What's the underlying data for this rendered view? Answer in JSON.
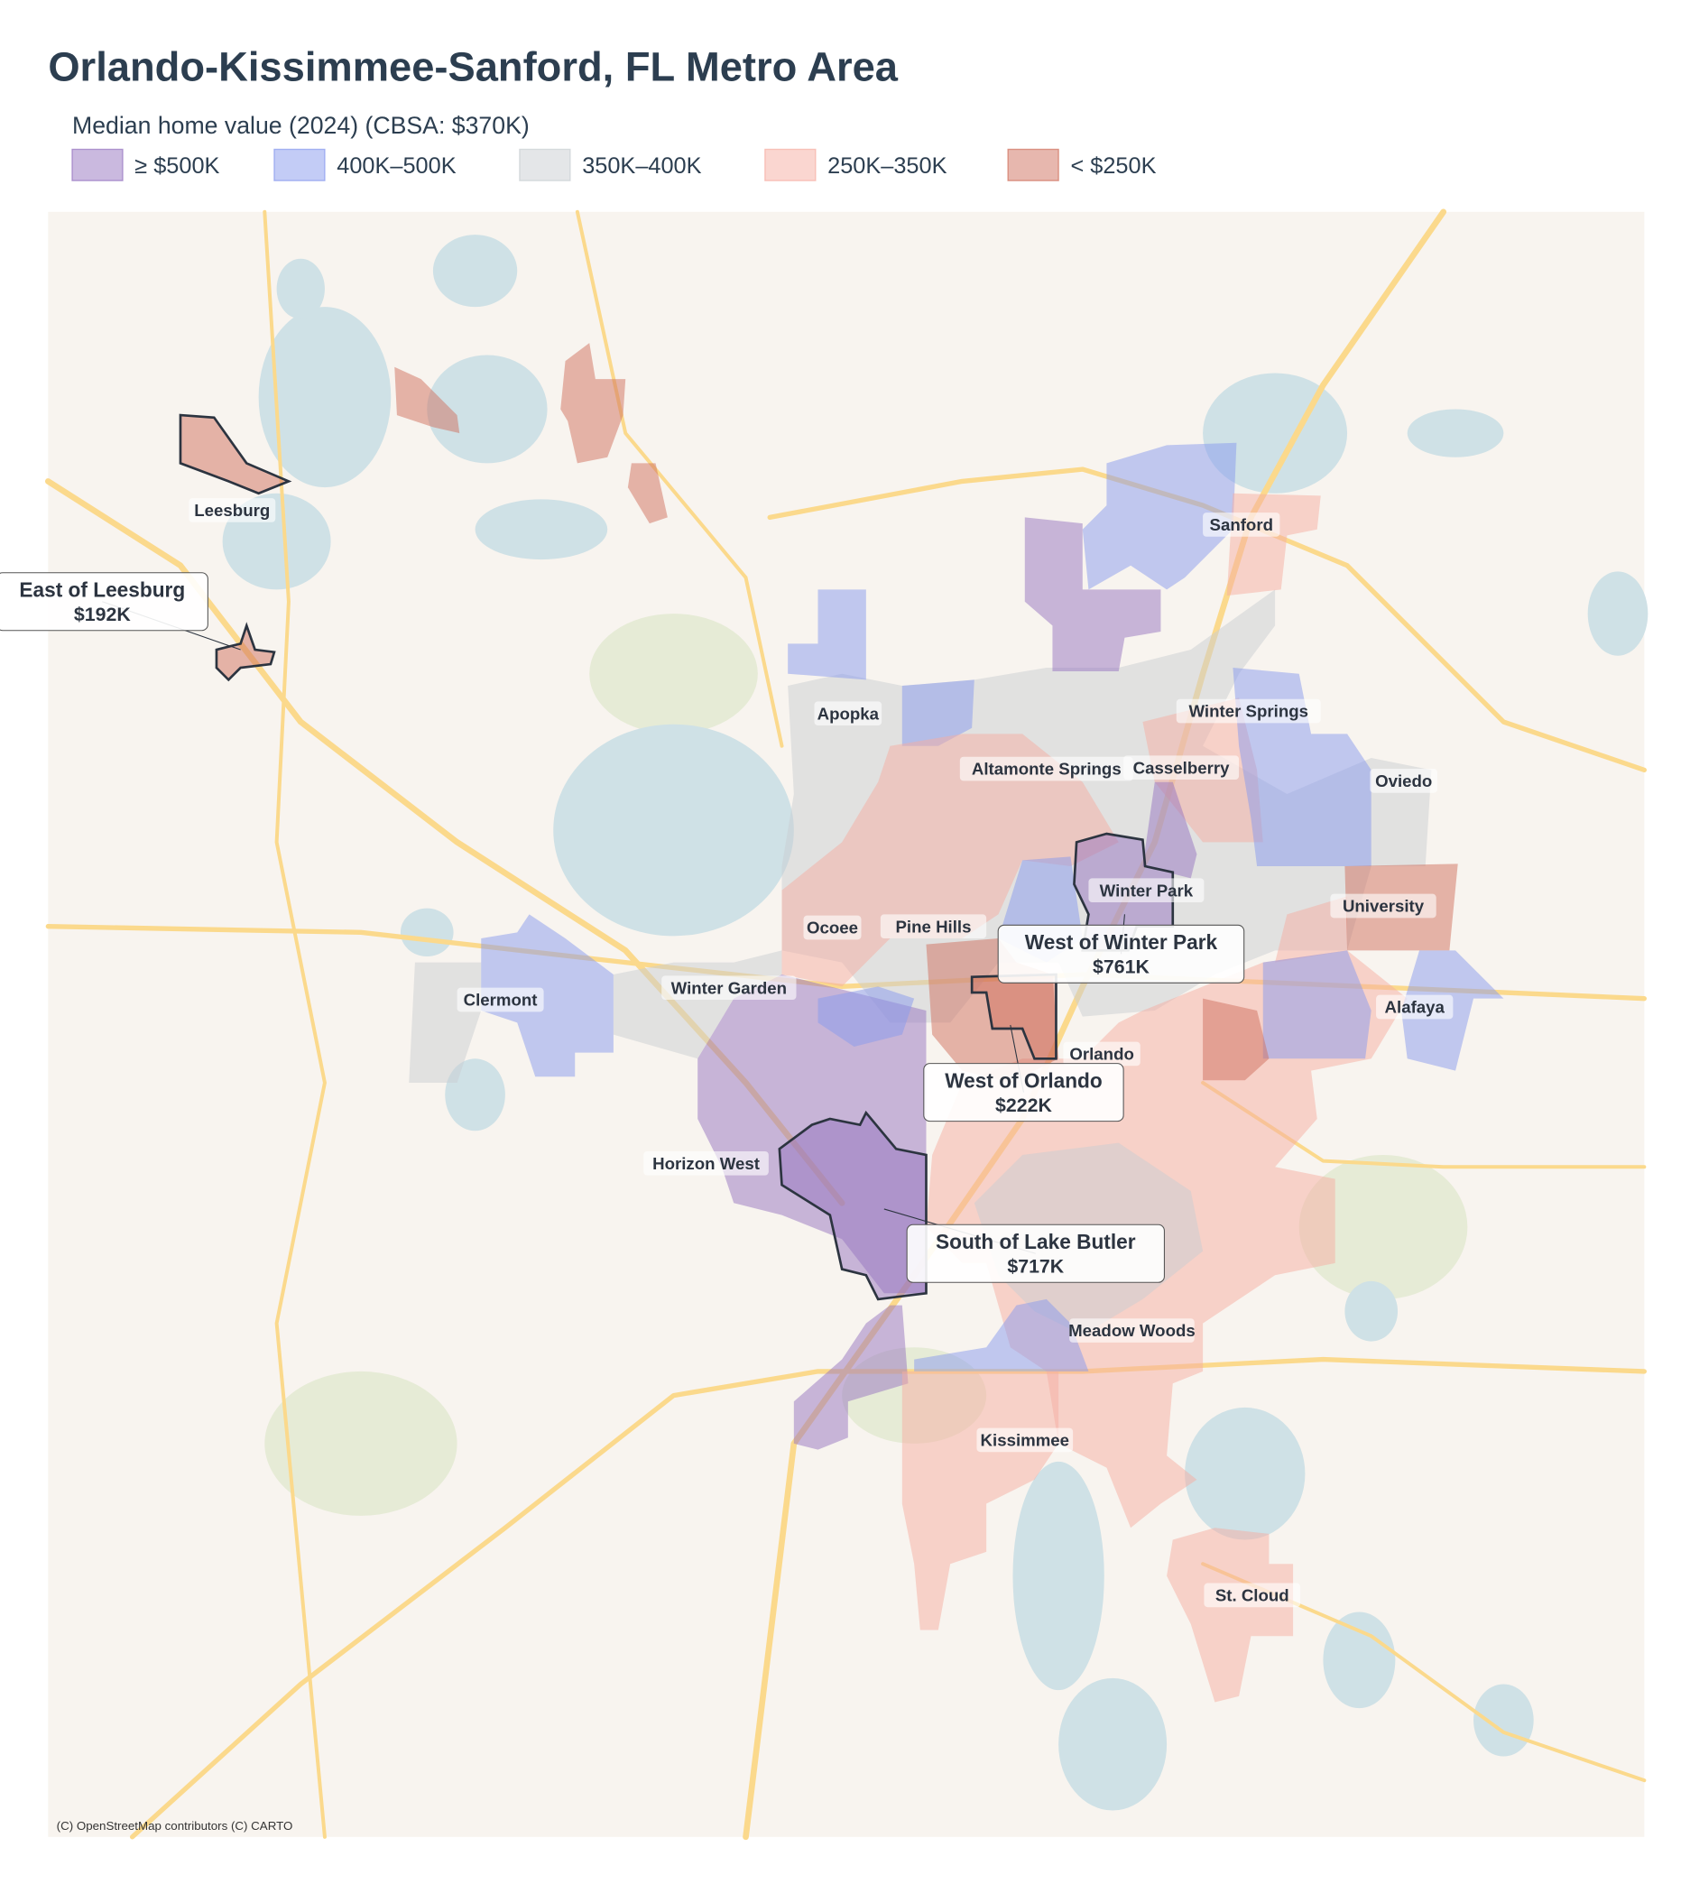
{
  "header": {
    "title": "Orlando-Kissimmee-Sanford, FL Metro Area",
    "subtitle": "Median home value (2024)  (CBSA: $370K)"
  },
  "legend": [
    {
      "label": "≥ $500K",
      "color": "#9574c0"
    },
    {
      "label": "400K–500K",
      "color": "#8899ee"
    },
    {
      "label": "350K–400K",
      "color": "#c9ced2"
    },
    {
      "label": "250K–350K",
      "color": "#f6aea2"
    },
    {
      "label": "< $250K",
      "color": "#d0705e"
    }
  ],
  "places": [
    "Leesburg",
    "Sanford",
    "Apopka",
    "Winter Springs",
    "Altamonte Springs",
    "Casselberry",
    "Oviedo",
    "Winter Park",
    "University",
    "Ocoee",
    "Pine Hills",
    "Winter Garden",
    "Clermont",
    "Alafaya",
    "Orlando",
    "Horizon West",
    "Meadow Woods",
    "Kissimmee",
    "St. Cloud"
  ],
  "callouts": [
    {
      "name": "East of Leesburg",
      "value": "$192K"
    },
    {
      "name": "West of Winter Park",
      "value": "$761K"
    },
    {
      "name": "West of Orlando",
      "value": "$222K"
    },
    {
      "name": "South of Lake Butler",
      "value": "$717K"
    }
  ],
  "attribution": "(C) OpenStreetMap contributors (C) CARTO"
}
